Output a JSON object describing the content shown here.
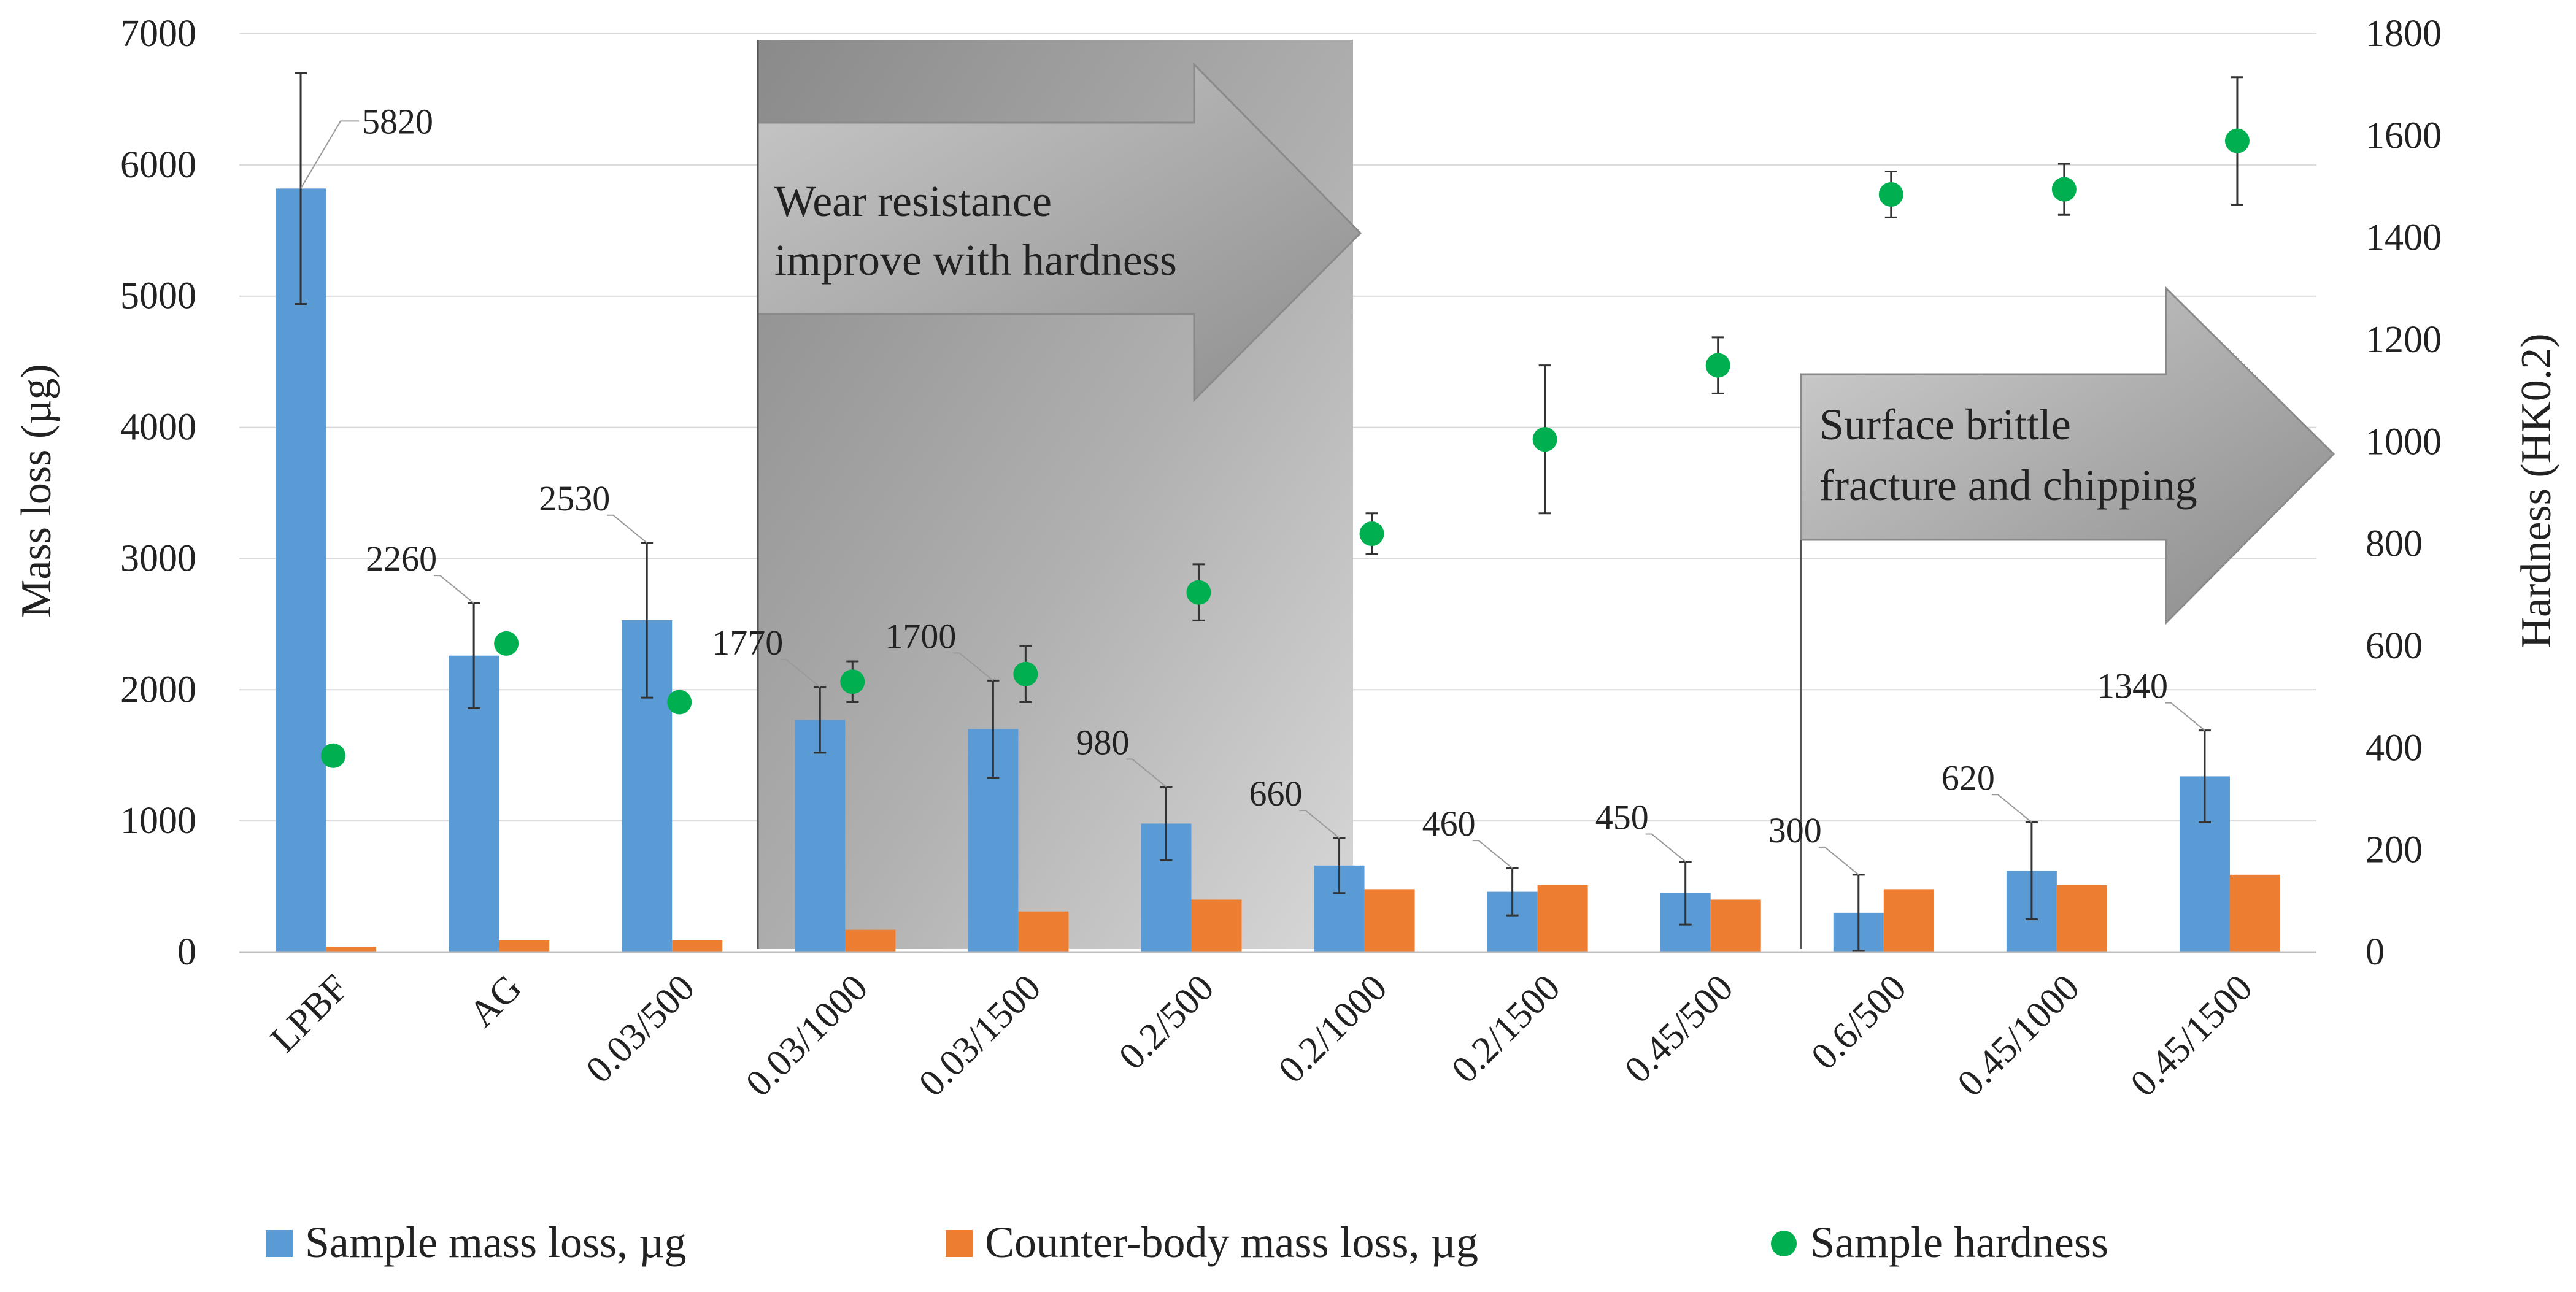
{
  "chart_data": {
    "type": "bar",
    "categories": [
      "LPBF",
      "AG",
      "0.03/500",
      "0.03/1000",
      "0.03/1500",
      "0.2/500",
      "0.2/1000",
      "0.2/1500",
      "0.45/500",
      "0.6/500",
      "0.45/1000",
      "0.45/1500"
    ],
    "series": [
      {
        "name": "Sample mass loss, µg",
        "axis": "left",
        "color": "#5b9bd5",
        "values": [
          5820,
          2260,
          2530,
          1770,
          1700,
          980,
          660,
          460,
          450,
          300,
          620,
          1340
        ],
        "error": [
          880,
          400,
          590,
          250,
          370,
          280,
          210,
          180,
          240,
          290,
          370,
          350
        ],
        "data_labels": [
          "5820",
          "2260",
          "2530",
          "1770",
          "1700",
          "980",
          "660",
          "460",
          "450",
          "300",
          "620",
          "1340"
        ]
      },
      {
        "name": "Counter-body mass loss, µg",
        "axis": "left",
        "color": "#ed7d31",
        "values": [
          40,
          90,
          90,
          170,
          310,
          400,
          480,
          510,
          400,
          480,
          510,
          590
        ]
      },
      {
        "name": "Sample hardness",
        "axis": "right",
        "type": "scatter",
        "color": "#00b050",
        "values": [
          385,
          605,
          490,
          530,
          545,
          705,
          820,
          1005,
          1150,
          1485,
          1495,
          1590
        ],
        "error": [
          0,
          0,
          15,
          40,
          55,
          55,
          40,
          145,
          55,
          45,
          50,
          125
        ]
      }
    ],
    "title": "",
    "xlabel": "",
    "ylabel": "Mass loss (µg)",
    "ylim": [
      0,
      7000
    ],
    "yticks": [
      0,
      1000,
      2000,
      3000,
      4000,
      5000,
      6000,
      7000
    ],
    "y2label": "Hardness (HK0.2)",
    "y2lim": [
      0,
      1800
    ],
    "y2ticks": [
      0,
      200,
      400,
      600,
      800,
      1000,
      1200,
      1400,
      1600,
      1800
    ],
    "grid": true,
    "legend_position": "bottom",
    "annotations": [
      {
        "lines": [
          "Wear resistance",
          "improve  with hardness"
        ]
      },
      {
        "lines": [
          "Surface brittle",
          "fracture and chipping"
        ]
      }
    ]
  }
}
